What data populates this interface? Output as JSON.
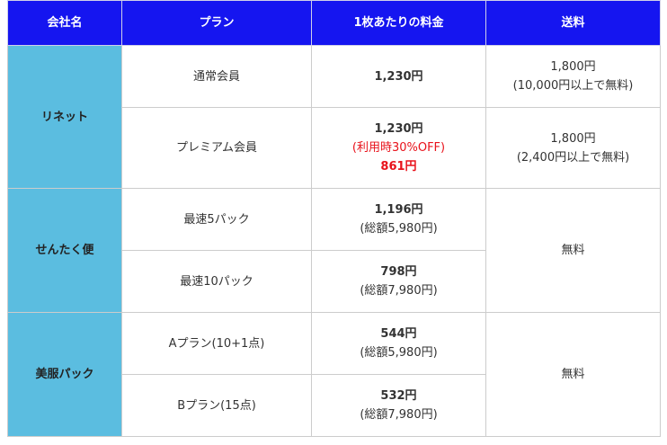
{
  "header": {
    "company": "会社名",
    "plan": "プラン",
    "price": "1枚あたりの料金",
    "shipping": "送料"
  },
  "rows": [
    {
      "company": "リネット",
      "plans": [
        {
          "plan": "通常会員",
          "price": "1,230円",
          "shipping_line1": "1,800円",
          "shipping_line2": "(10,000円以上で無料)"
        },
        {
          "plan": "プレミアム会員",
          "price": "1,230円",
          "price_note": "(利用時30%OFF)",
          "price_discount": "861円",
          "shipping_line1": "1,800円",
          "shipping_line2": "(2,400円以上で無料)"
        }
      ]
    },
    {
      "company": "せんたく便",
      "shipping": "無料",
      "plans": [
        {
          "plan": "最速5パック",
          "price": "1,196円",
          "total": "(総額5,980円)"
        },
        {
          "plan": "最速10パック",
          "price": "798円",
          "total": "(総額7,980円)"
        }
      ]
    },
    {
      "company": "美服パック",
      "shipping": "無料",
      "plans": [
        {
          "plan": "Aプラン(10+1点)",
          "price": "544円",
          "total": "(総額5,980円)"
        },
        {
          "plan": "Bプラン(15点)",
          "price": "532円",
          "total": "(総額7,980円)"
        }
      ]
    }
  ],
  "colors": {
    "header_bg": "#1515f0",
    "company_bg": "#5bbde0",
    "discount_red": "#e8121b"
  }
}
